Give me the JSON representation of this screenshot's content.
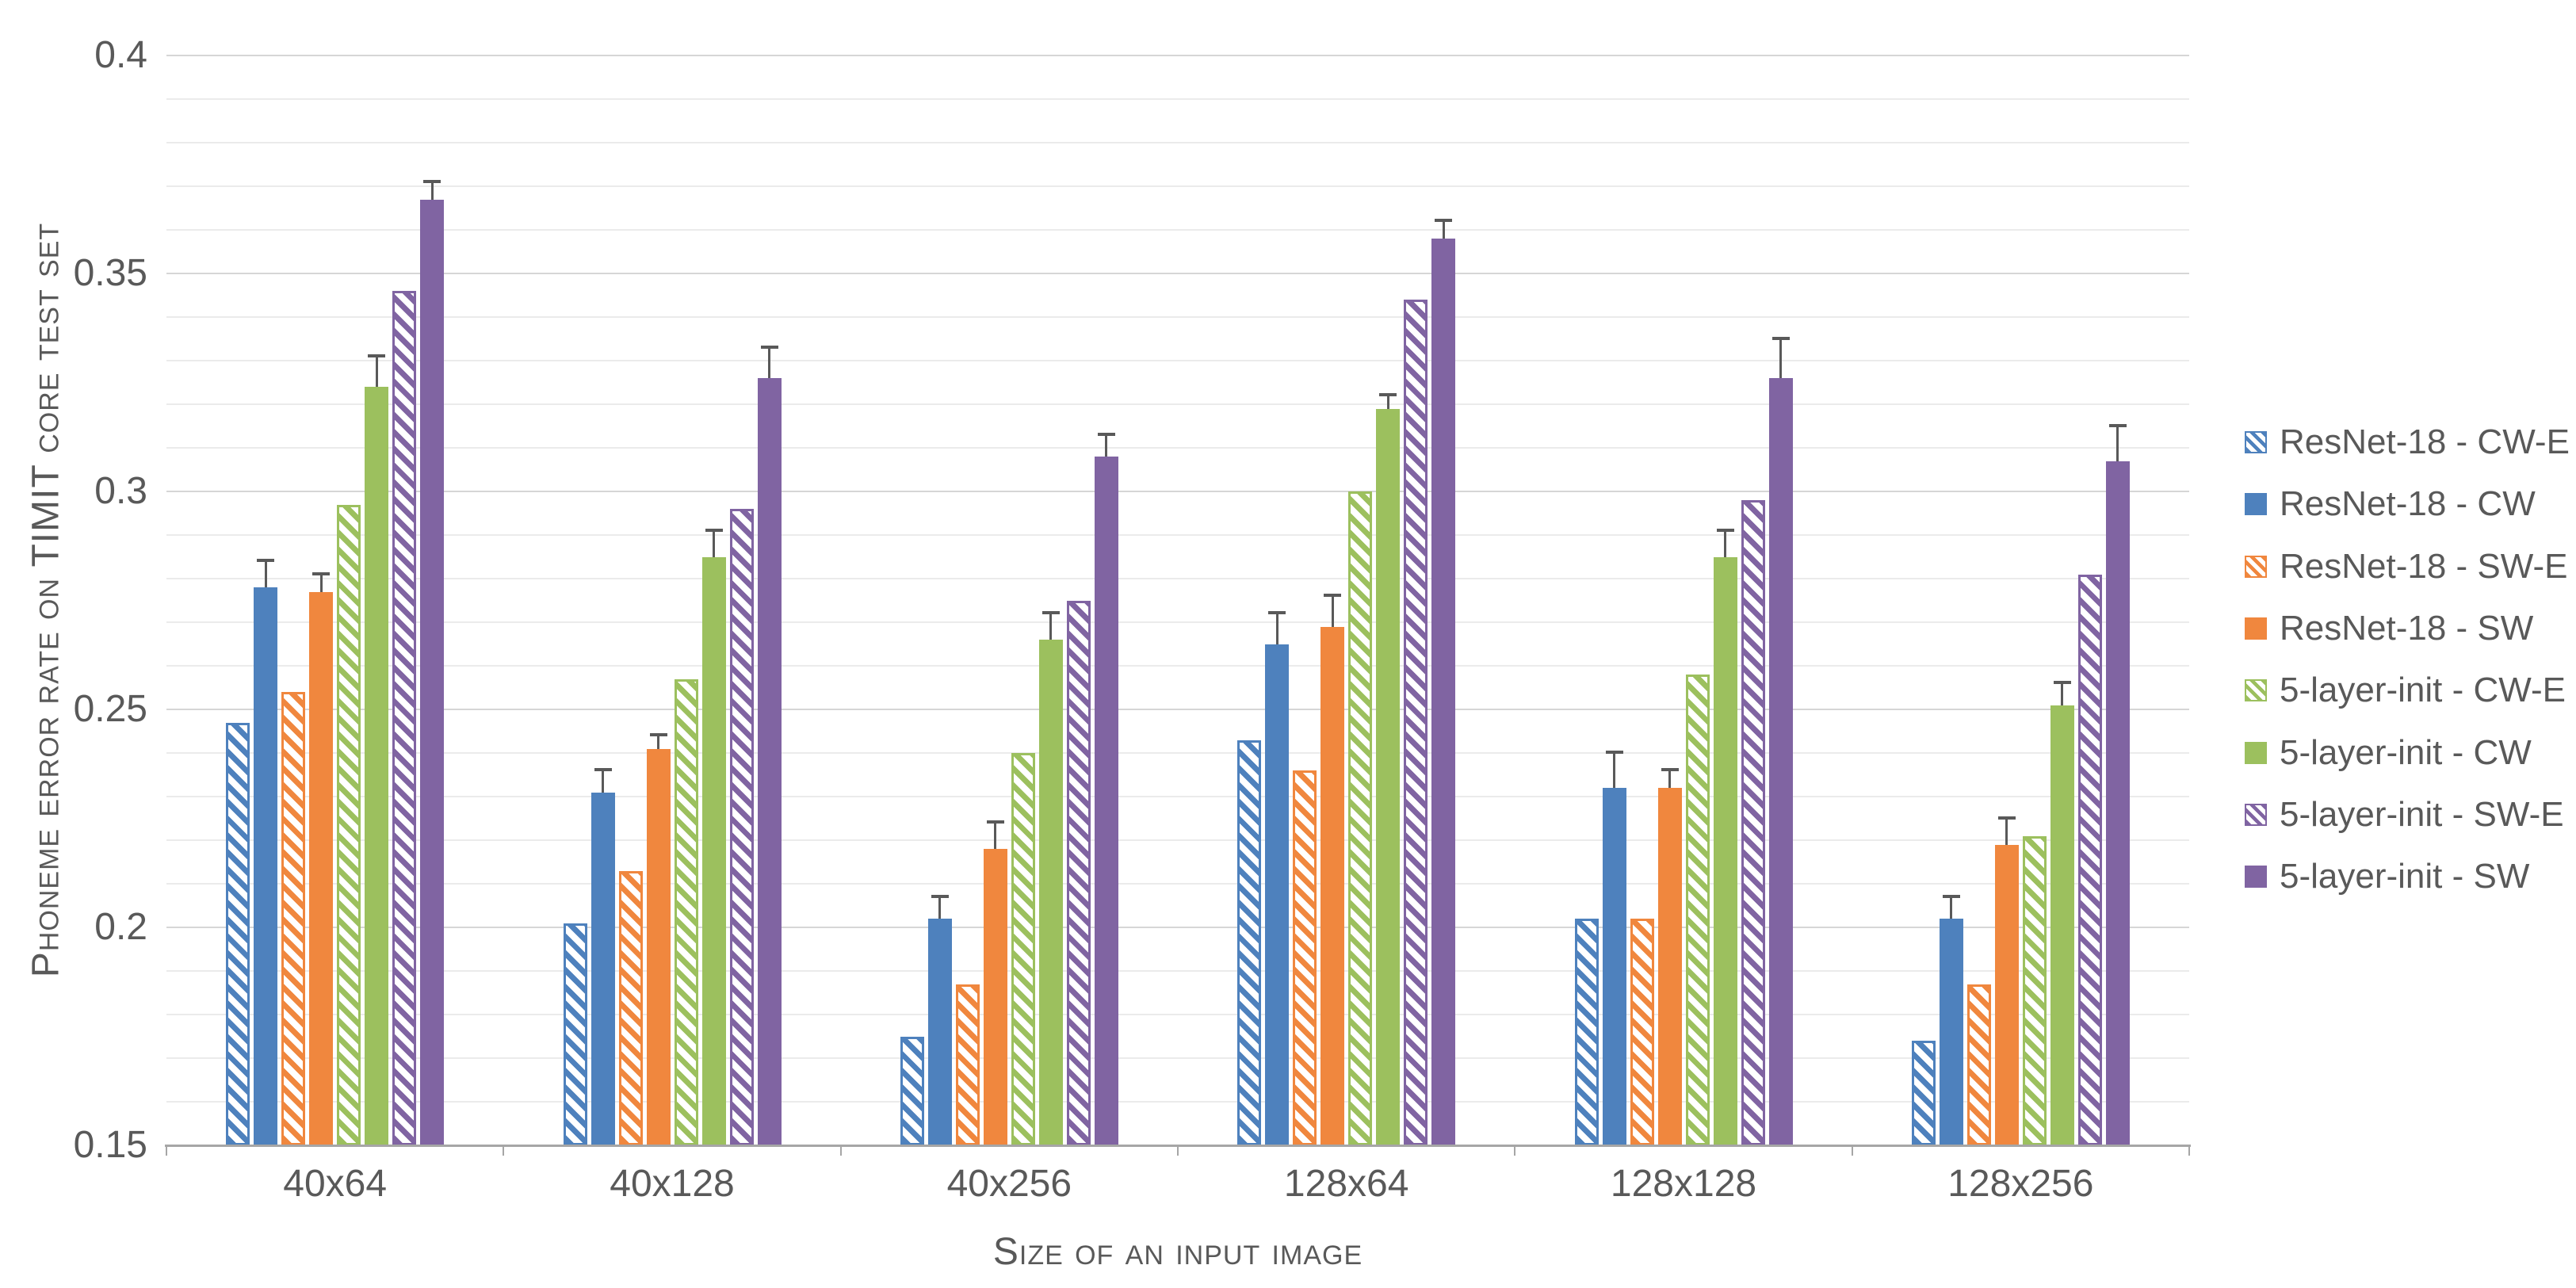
{
  "chart_data": {
    "type": "bar",
    "title": "",
    "xlabel": "Size of an input image",
    "ylabel": "Phoneme error rate on TIMIT core test set",
    "categories": [
      "40x64",
      "40x128",
      "40x256",
      "128x64",
      "128x128",
      "128x256"
    ],
    "yticks": [
      0.15,
      0.2,
      0.25,
      0.3,
      0.35,
      0.4
    ],
    "ylim": [
      0.15,
      0.4
    ],
    "minor_grid_step": 0.01,
    "major_grid_step": 0.05,
    "grid": "on",
    "legend_position": "right",
    "error_bars_on": "solid series only",
    "series": [
      {
        "name": "ResNet-18 - CW-E",
        "color": "#4E81BD",
        "hatch": true,
        "values": [
          0.247,
          0.201,
          0.175,
          0.243,
          0.202,
          0.174
        ],
        "errors": [
          null,
          null,
          null,
          null,
          null,
          null
        ]
      },
      {
        "name": "ResNet-18 - CW",
        "color": "#4E81BD",
        "hatch": false,
        "values": [
          0.278,
          0.231,
          0.202,
          0.265,
          0.232,
          0.202
        ],
        "errors": [
          0.006,
          0.005,
          0.005,
          0.007,
          0.008,
          0.005
        ]
      },
      {
        "name": "ResNet-18 - SW-E",
        "color": "#F0873E",
        "hatch": true,
        "values": [
          0.254,
          0.213,
          0.187,
          0.236,
          0.202,
          0.187
        ],
        "errors": [
          null,
          null,
          null,
          null,
          null,
          null
        ]
      },
      {
        "name": "ResNet-18 - SW",
        "color": "#F0873E",
        "hatch": false,
        "values": [
          0.277,
          0.241,
          0.218,
          0.269,
          0.232,
          0.219
        ],
        "errors": [
          0.004,
          0.003,
          0.006,
          0.007,
          0.004,
          0.006
        ]
      },
      {
        "name": "5-layer-init - CW-E",
        "color": "#9CC05E",
        "hatch": true,
        "values": [
          0.297,
          0.257,
          0.24,
          0.3,
          0.258,
          0.221
        ],
        "errors": [
          null,
          null,
          null,
          null,
          null,
          null
        ]
      },
      {
        "name": "5-layer-init - CW",
        "color": "#9CC05E",
        "hatch": false,
        "values": [
          0.324,
          0.285,
          0.266,
          0.319,
          0.285,
          0.251
        ],
        "errors": [
          0.007,
          0.006,
          0.006,
          0.003,
          0.006,
          0.005
        ]
      },
      {
        "name": "5-layer-init - SW-E",
        "color": "#8064A2",
        "hatch": true,
        "values": [
          0.346,
          0.296,
          0.275,
          0.344,
          0.298,
          0.281
        ],
        "errors": [
          null,
          null,
          null,
          null,
          null,
          null
        ]
      },
      {
        "name": "5-layer-init - SW",
        "color": "#8064A2",
        "hatch": false,
        "values": [
          0.367,
          0.326,
          0.308,
          0.358,
          0.326,
          0.307
        ],
        "errors": [
          0.004,
          0.007,
          0.005,
          0.004,
          0.009,
          0.008
        ]
      }
    ],
    "colors": {
      "blue": "#4E81BD",
      "orange": "#F0873E",
      "green": "#9CC05E",
      "purple": "#8064A2",
      "text": "#595959",
      "error_bar": "#595959",
      "minor_grid": "#EBEBEB",
      "major_grid": "#D6D6D6",
      "axis_line": "#A6A6A6"
    }
  }
}
